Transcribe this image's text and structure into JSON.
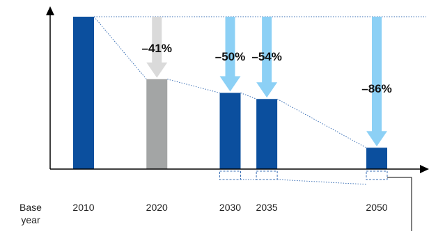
{
  "chart_data": {
    "type": "bar",
    "base_label": [
      "Base",
      "year"
    ],
    "categories": [
      "2010",
      "2020",
      "2030",
      "2035",
      "2050"
    ],
    "values": [
      100,
      59,
      50,
      46,
      14
    ],
    "reductions": [
      "",
      "–41%",
      "–50%",
      "–54%",
      "–86%"
    ],
    "x_positions": [
      2010,
      2020,
      2030,
      2035,
      2050
    ],
    "ylim": [
      0,
      100
    ],
    "grid": false,
    "colors": {
      "bar_primary": "#0b4f9e",
      "bar_past": "#a3a5a5",
      "arrow_future": "#8cd0f5",
      "arrow_past": "#dadada",
      "axis": "#000000",
      "dotted_line": "#3a6fb5"
    }
  }
}
